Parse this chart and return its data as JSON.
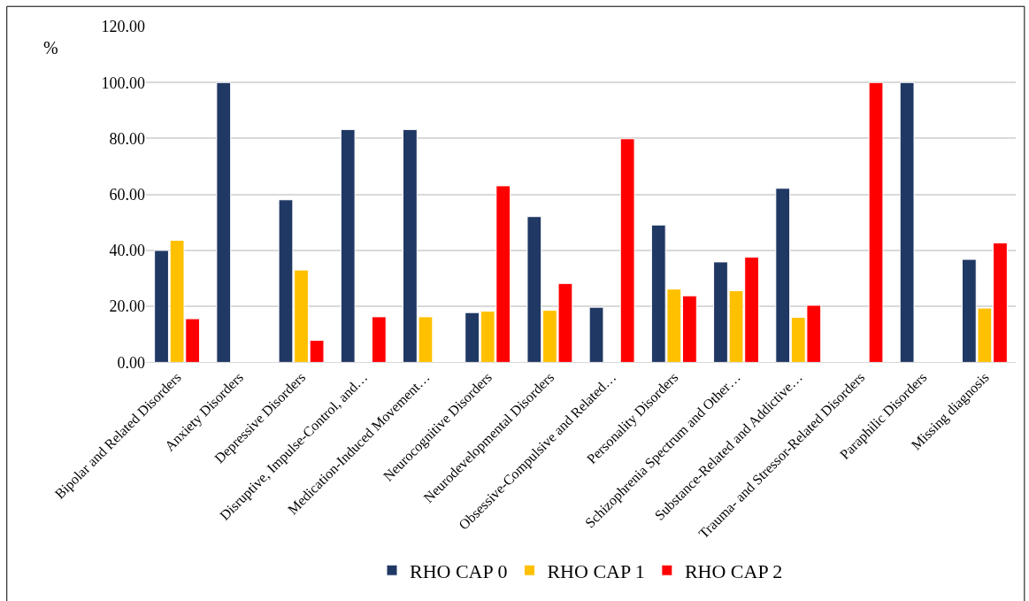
{
  "chart_data": {
    "type": "bar",
    "ylabel": "%",
    "categories": [
      "Bipolar and Related Disorders",
      "Anxiety Disorders",
      "Depressive Disorders",
      "Disruptive, Impulse-Control, and…",
      "Medication-Induced Movement…",
      "Neurocognitive Disorders",
      "Neurodevelopmental Disorders",
      "Obsessive-Compulsive and Related…",
      "Personality Disorders",
      "Schizophrenia Spectrum and Other…",
      "Substance-Related and Addictive…",
      "Trauma- and Stressor-Related Disorders",
      "Paraphilic Disorders",
      "Missing diagnosis"
    ],
    "series": [
      {
        "name": "RHO CAP 0",
        "color": "#203864",
        "values": [
          40,
          100,
          58.1,
          83.2,
          83.2,
          17.8,
          52.1,
          19.7,
          49.1,
          35.9,
          62.2,
          null,
          100,
          36.8
        ]
      },
      {
        "name": "RHO CAP 1",
        "color": "#ffc000",
        "values": [
          43.6,
          null,
          33.0,
          null,
          16.3,
          18.3,
          18.6,
          null,
          26.2,
          25.6,
          16.1,
          null,
          null,
          19.4
        ]
      },
      {
        "name": "RHO CAP 2",
        "color": "#ff0000",
        "values": [
          15.6,
          null,
          7.9,
          16.3,
          null,
          63.1,
          28.2,
          79.9,
          23.8,
          37.6,
          20.4,
          100,
          null,
          42.7
        ]
      }
    ],
    "ylim": [
      0,
      120
    ],
    "yticks": [
      {
        "value": 0,
        "label": "0.00"
      },
      {
        "value": 20,
        "label": "20.00"
      },
      {
        "value": 40,
        "label": "40.00"
      },
      {
        "value": 60,
        "label": "60.00"
      },
      {
        "value": 80,
        "label": "80.00"
      },
      {
        "value": 100,
        "label": "100.00"
      },
      {
        "value": 120,
        "label": "120.00"
      }
    ],
    "grid": "y",
    "legend": "bottom"
  }
}
